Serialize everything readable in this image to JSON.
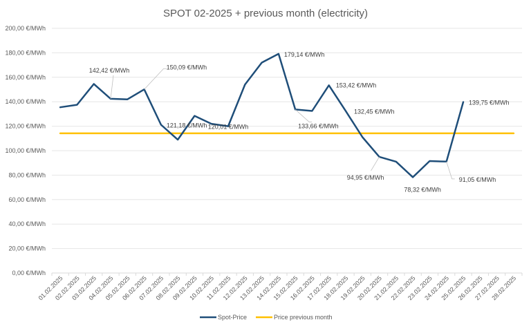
{
  "chart_data": {
    "type": "line",
    "title": "SPOT 02-2025 + previous month (electricity)",
    "xlabel": "",
    "ylabel": "",
    "ylim": [
      0,
      200
    ],
    "y_step": 20,
    "y_tick_format": "{v},00 €/MWh",
    "y_ticks": [
      "0,00 €/MWh",
      "20,00 €/MWh",
      "40,00 €/MWh",
      "60,00 €/MWh",
      "80,00 €/MWh",
      "100,00 €/MWh",
      "120,00 €/MWh",
      "140,00 €/MWh",
      "160,00 €/MWh",
      "180,00 €/MWh",
      "200,00 €/MWh"
    ],
    "grid": true,
    "legend_position": "bottom",
    "categories": [
      "01.02.2025",
      "02.02.2025",
      "03.02.2025",
      "04.02.2025",
      "05.02.2025",
      "06.02.2025",
      "07.02.2025",
      "08.02.2025",
      "09.02.2025",
      "10.02.2025",
      "11.02.2025",
      "12.02.2025",
      "13.02.2025",
      "14.02.2025",
      "15.02.2025",
      "16.02.2025",
      "17.02.2025",
      "18.02.2025",
      "19.02.2025",
      "20.02.2025",
      "21.02.2025",
      "22.02.2025",
      "23.02.2025",
      "24.02.2025",
      "25.02.2025",
      "26.02.2025",
      "27.02.2025",
      "28.02.2025"
    ],
    "series": [
      {
        "name": "Spot-Price",
        "color": "#1f4e79",
        "values": [
          135.5,
          137.5,
          154.5,
          142.42,
          142.0,
          150.09,
          121.18,
          109.0,
          128.5,
          122.0,
          120.01,
          154.0,
          172.0,
          179.14,
          133.66,
          132.5,
          153.42,
          132.45,
          111.0,
          94.95,
          91.0,
          78.32,
          91.5,
          91.05,
          139.75,
          null,
          null,
          null
        ]
      },
      {
        "name": "Price previous month",
        "color": "#ffc000",
        "values": [
          114.2,
          114.2,
          114.2,
          114.2,
          114.2,
          114.2,
          114.2,
          114.2,
          114.2,
          114.2,
          114.2,
          114.2,
          114.2,
          114.2,
          114.2,
          114.2,
          114.2,
          114.2,
          114.2,
          114.2,
          114.2,
          114.2,
          114.2,
          114.2,
          114.2,
          114.2,
          114.2,
          114.2
        ]
      }
    ],
    "annotations": [
      {
        "index": 3,
        "text": "142,42 €/MWh",
        "leader": true
      },
      {
        "index": 5,
        "text": "150,09 €/MWh",
        "leader": true
      },
      {
        "index": 6,
        "text": "121,18 €/MWh",
        "leader": false
      },
      {
        "index": 10,
        "text": "120,01 €/MWh",
        "leader": false
      },
      {
        "index": 13,
        "text": "179,14 €/MWh",
        "leader": false
      },
      {
        "index": 14,
        "text": "133,66 €/MWh",
        "leader": true
      },
      {
        "index": 16,
        "text": "153,42 €/MWh",
        "leader": false
      },
      {
        "index": 17,
        "text": "132,45 €/MWh",
        "leader": false
      },
      {
        "index": 19,
        "text": "94,95 €/MWh",
        "leader": true
      },
      {
        "index": 21,
        "text": "78,32 €/MWh",
        "leader": false
      },
      {
        "index": 23,
        "text": "91,05 €/MWh",
        "leader": true
      },
      {
        "index": 24,
        "text": "139,75 €/MWh",
        "leader": false
      }
    ]
  }
}
